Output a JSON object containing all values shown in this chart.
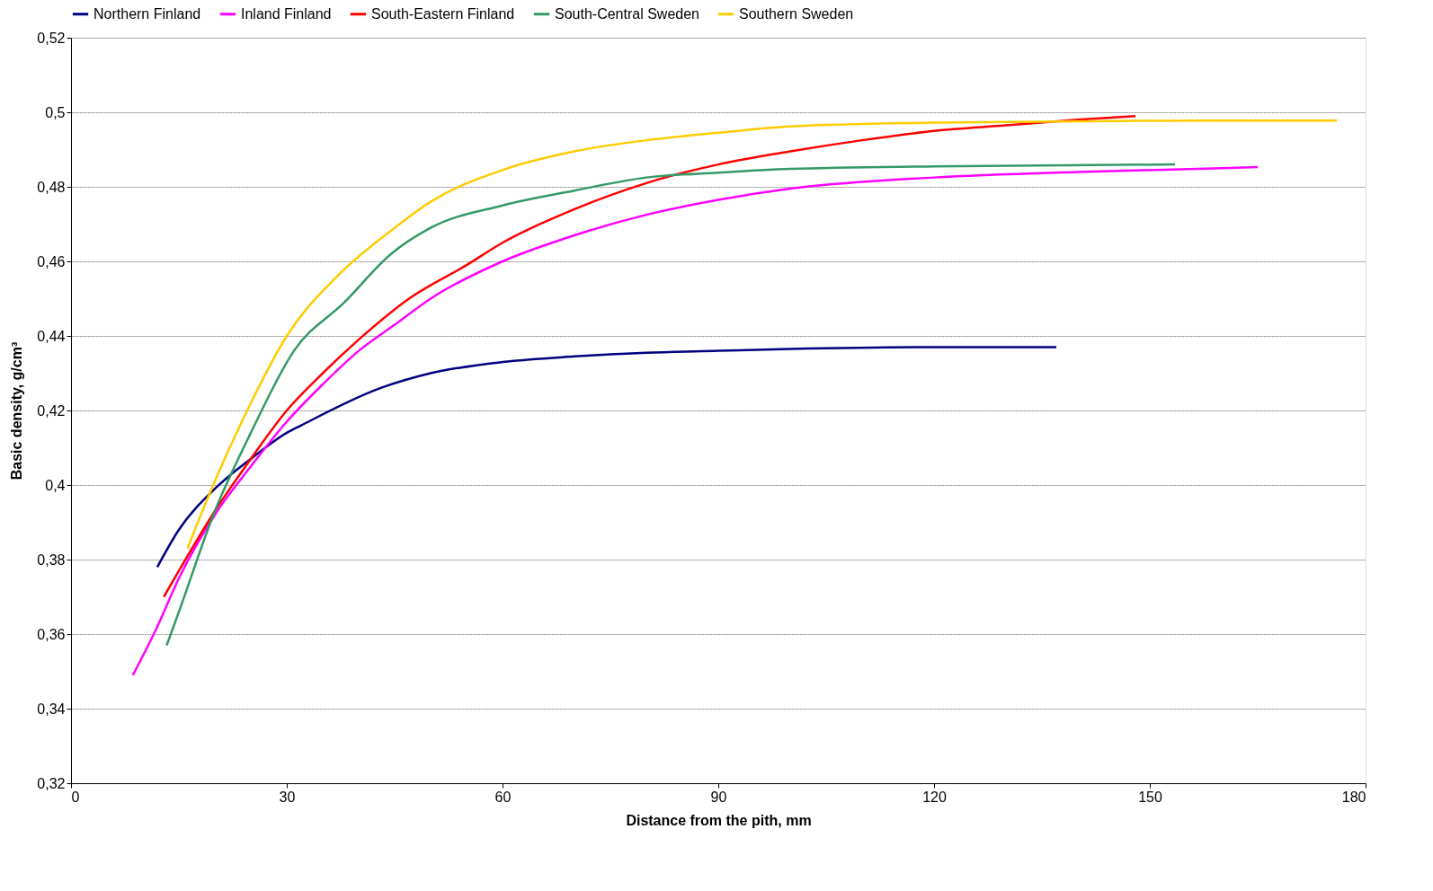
{
  "chart_data": {
    "type": "line",
    "xlabel": "Distance from the pith, mm",
    "ylabel": "Basic density, g/cm³",
    "xlim": [
      0,
      180
    ],
    "xticks": [
      0,
      30,
      60,
      90,
      120,
      150,
      180
    ],
    "ylim": [
      0.32,
      0.52
    ],
    "yticks": [
      {
        "value": 0.32,
        "label": "0,32"
      },
      {
        "value": 0.34,
        "label": "0,34"
      },
      {
        "value": 0.36,
        "label": "0,36"
      },
      {
        "value": 0.38,
        "label": "0,38"
      },
      {
        "value": 0.4,
        "label": "0,4"
      },
      {
        "value": 0.42,
        "label": "0,42"
      },
      {
        "value": 0.44,
        "label": "0,44"
      },
      {
        "value": 0.46,
        "label": "0,46"
      },
      {
        "value": 0.48,
        "label": "0,48"
      },
      {
        "value": 0.5,
        "label": "0,5"
      },
      {
        "value": 0.52,
        "label": "0,52"
      }
    ],
    "grid": "y",
    "legend": "top",
    "marker": "none",
    "line_style": "solid",
    "series": [
      {
        "name": "Northern Finland",
        "color": "#000080",
        "x": [
          12,
          15,
          20,
          25,
          30,
          32,
          43,
          50,
          60,
          70,
          80,
          90,
          100,
          120,
          137
        ],
        "values": [
          0.378,
          0.388,
          0.399,
          0.407,
          0.414,
          0.416,
          0.426,
          0.43,
          0.433,
          0.4345,
          0.4355,
          0.436,
          0.4365,
          0.437,
          0.437
        ]
      },
      {
        "name": "Inland Finland",
        "color": "#ff00ff",
        "x": [
          8.6,
          12,
          15,
          20,
          25,
          30,
          35,
          40,
          45,
          50,
          60,
          70,
          80,
          90,
          100,
          120,
          140,
          160,
          165
        ],
        "values": [
          0.349,
          0.362,
          0.375,
          0.392,
          0.405,
          0.417,
          0.427,
          0.436,
          0.443,
          0.45,
          0.46,
          0.467,
          0.4725,
          0.4765,
          0.4795,
          0.4825,
          0.484,
          0.485,
          0.4853
        ]
      },
      {
        "name": "South-Eastern Finland",
        "color": "#ff0000",
        "x": [
          12.9,
          15,
          20,
          25,
          30,
          35,
          40,
          47,
          55,
          60,
          70,
          80,
          90,
          100,
          110,
          120,
          130,
          140,
          148
        ],
        "values": [
          0.37,
          0.377,
          0.393,
          0.407,
          0.42,
          0.43,
          0.439,
          0.45,
          0.459,
          0.465,
          0.474,
          0.481,
          0.486,
          0.4895,
          0.4925,
          0.495,
          0.4965,
          0.498,
          0.499
        ]
      },
      {
        "name": "South-Central Sweden",
        "color": "#339966",
        "x": [
          13.3,
          15,
          20,
          25,
          31,
          38,
          44.5,
          50,
          60,
          70,
          80,
          90,
          100,
          120,
          153.5
        ],
        "values": [
          0.357,
          0.366,
          0.393,
          0.414,
          0.436,
          0.449,
          0.462,
          0.469,
          0.475,
          0.479,
          0.4825,
          0.4838,
          0.4848,
          0.4855,
          0.486
        ]
      },
      {
        "name": "Southern Sweden",
        "color": "#ffcc00",
        "x": [
          16.2,
          20,
          25,
          30,
          37,
          45,
          50,
          60,
          70,
          80,
          90,
          100,
          120,
          150,
          176
        ],
        "values": [
          0.383,
          0.401,
          0.422,
          0.44,
          0.456,
          0.469,
          0.476,
          0.4845,
          0.4895,
          0.4925,
          0.4945,
          0.4962,
          0.4972,
          0.4977,
          0.4978
        ]
      }
    ]
  }
}
